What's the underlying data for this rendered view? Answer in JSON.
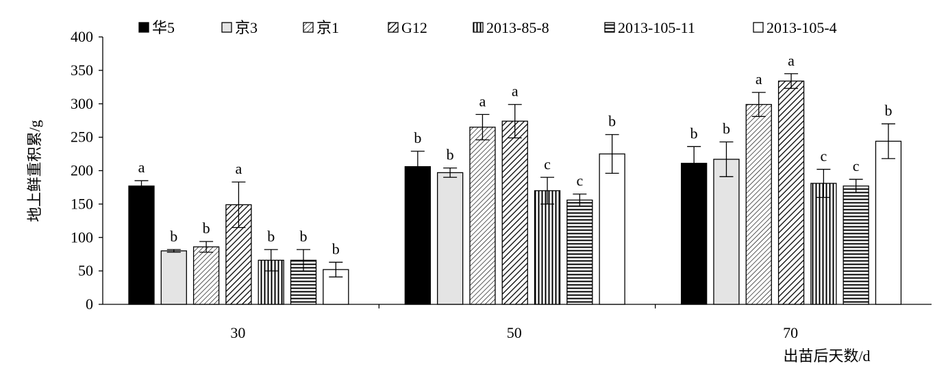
{
  "chart_data": {
    "type": "bar",
    "title": "",
    "ylabel": "地上鲜重积累/g",
    "xlabel": "出苗后天数/d",
    "ylim": [
      0,
      400
    ],
    "yticks": [
      0,
      50,
      100,
      150,
      200,
      250,
      300,
      350,
      400
    ],
    "grid": false,
    "legend_position": "top",
    "categories": [
      "30",
      "50",
      "70"
    ],
    "series": [
      {
        "name": "华5",
        "values": [
          177,
          206,
          211
        ],
        "errors": [
          8,
          23,
          25
        ],
        "labels": [
          "a",
          "b",
          "b"
        ]
      },
      {
        "name": "京3",
        "values": [
          80,
          197,
          217
        ],
        "errors": [
          2,
          7,
          26
        ],
        "labels": [
          "b",
          "b",
          "b"
        ]
      },
      {
        "name": "京1",
        "values": [
          86,
          265,
          299
        ],
        "errors": [
          8,
          19,
          18
        ],
        "labels": [
          "b",
          "a",
          "a"
        ]
      },
      {
        "name": "G12",
        "values": [
          149,
          274,
          334
        ],
        "errors": [
          34,
          25,
          11
        ],
        "labels": [
          "a",
          "a",
          "a"
        ]
      },
      {
        "name": "2013-85-8",
        "values": [
          66,
          170,
          181
        ],
        "errors": [
          16,
          20,
          21
        ],
        "labels": [
          "b",
          "c",
          "c"
        ]
      },
      {
        "name": "2013-105-11",
        "values": [
          66,
          156,
          177
        ],
        "errors": [
          16,
          9,
          10
        ],
        "labels": [
          "b",
          "c",
          "c"
        ]
      },
      {
        "name": "2013-105-4",
        "values": [
          52,
          225,
          244
        ],
        "errors": [
          11,
          29,
          26
        ],
        "labels": [
          "b",
          "b",
          "b"
        ]
      }
    ]
  }
}
